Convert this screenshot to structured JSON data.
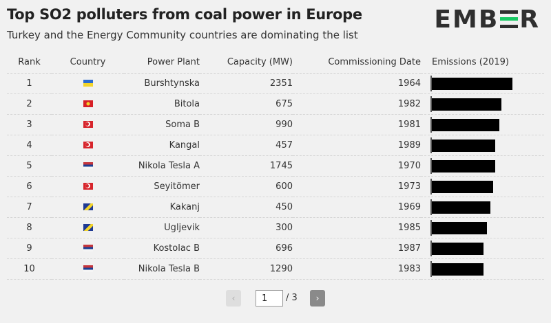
{
  "header": {
    "title": "Top SO2 polluters from coal power in Europe",
    "subtitle": "Turkey and the Energy Community countries are dominating the list",
    "logo": "EMBER"
  },
  "colors": {
    "bar": "#000000",
    "logo_accent": "#18c964",
    "background": "#f1f1f1"
  },
  "chart_data": {
    "type": "table",
    "columns": [
      "Rank",
      "Country",
      "Power Plant",
      "Capacity (MW)",
      "Commissioning Date",
      "Emissions (2019)"
    ],
    "rows": [
      {
        "rank": "1",
        "country": "ua",
        "plant": "Burshtynska",
        "capacity": "2351",
        "date": "1964",
        "emissions_rel": 1.0
      },
      {
        "rank": "2",
        "country": "mk",
        "plant": "Bitola",
        "capacity": "675",
        "date": "1982",
        "emissions_rel": 0.86
      },
      {
        "rank": "3",
        "country": "tr",
        "plant": "Soma B",
        "capacity": "990",
        "date": "1981",
        "emissions_rel": 0.84
      },
      {
        "rank": "4",
        "country": "tr",
        "plant": "Kangal",
        "capacity": "457",
        "date": "1989",
        "emissions_rel": 0.79
      },
      {
        "rank": "5",
        "country": "rs",
        "plant": "Nikola Tesla A",
        "capacity": "1745",
        "date": "1970",
        "emissions_rel": 0.79
      },
      {
        "rank": "6",
        "country": "tr",
        "plant": "Seyitömer",
        "capacity": "600",
        "date": "1973",
        "emissions_rel": 0.76
      },
      {
        "rank": "7",
        "country": "ba",
        "plant": "Kakanj",
        "capacity": "450",
        "date": "1969",
        "emissions_rel": 0.73
      },
      {
        "rank": "8",
        "country": "ba",
        "plant": "Ugljevik",
        "capacity": "300",
        "date": "1985",
        "emissions_rel": 0.68
      },
      {
        "rank": "9",
        "country": "rs",
        "plant": "Kostolac B",
        "capacity": "696",
        "date": "1987",
        "emissions_rel": 0.64
      },
      {
        "rank": "10",
        "country": "rs",
        "plant": "Nikola Tesla B",
        "capacity": "1290",
        "date": "1983",
        "emissions_rel": 0.64
      }
    ]
  },
  "pager": {
    "prev_icon": "‹",
    "next_icon": "›",
    "current_page": "1",
    "total_label": "/ 3"
  }
}
